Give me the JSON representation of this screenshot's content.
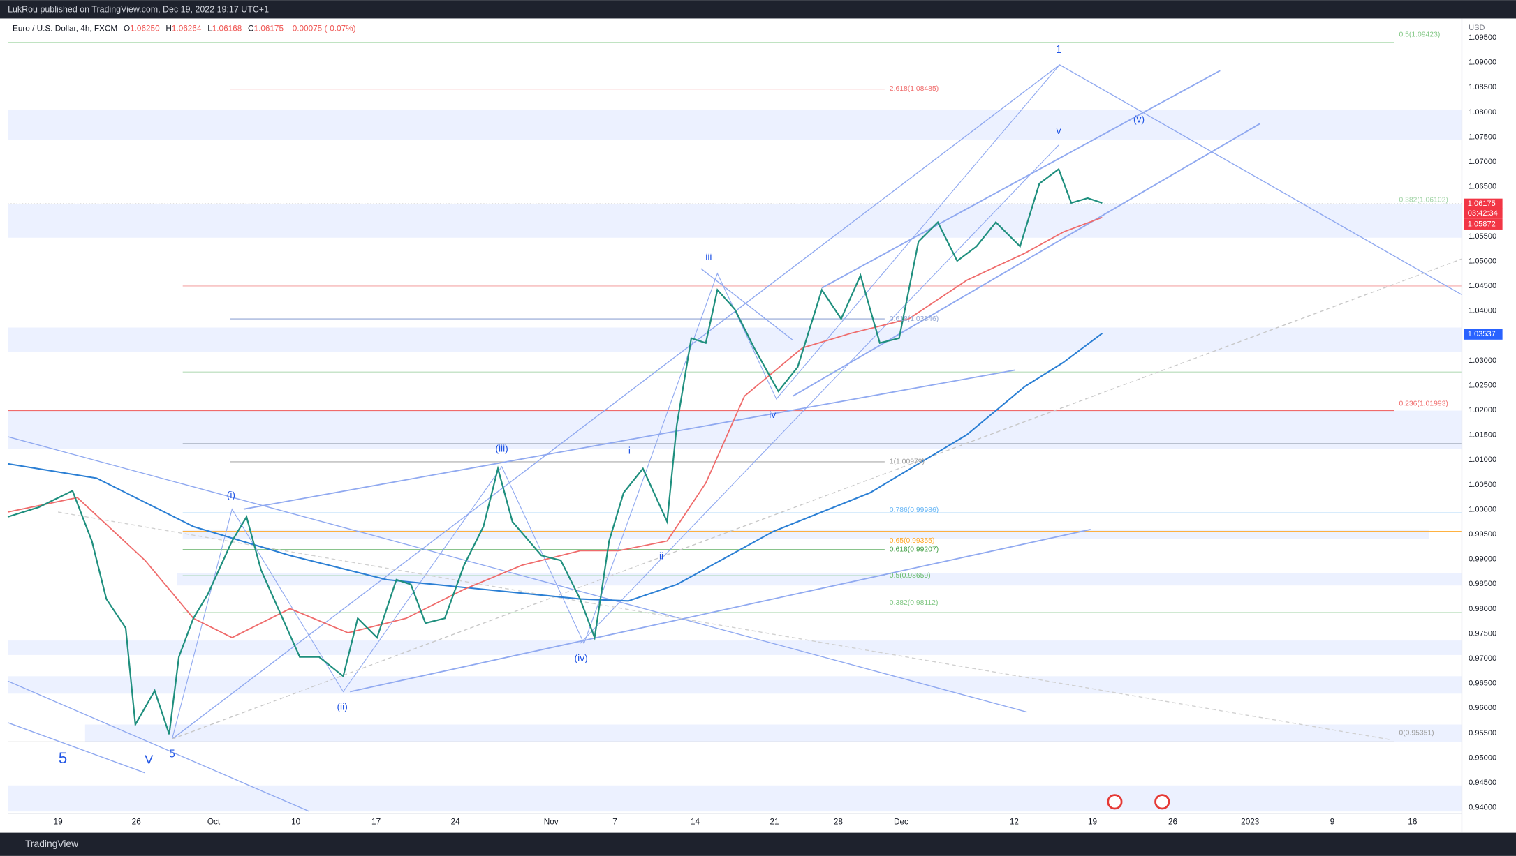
{
  "header": {
    "publisher": "LukRou published on TradingView.com, Dec 19, 2022 19:17 UTC+1"
  },
  "symbol": {
    "name": "Euro / U.S. Dollar, 4h, FXCM",
    "open_label": "O",
    "open": "1.06250",
    "high_label": "H",
    "high": "1.06264",
    "low_label": "L",
    "low": "1.06168",
    "close_label": "C",
    "close": "1.06175",
    "change": "-0.00075 (-0.07%)"
  },
  "price_axis": {
    "currency": "USD",
    "labels": [
      "1.09500",
      "1.09000",
      "1.08500",
      "1.08000",
      "1.07500",
      "1.07000",
      "1.06500",
      "1.06000",
      "1.05500",
      "1.05000",
      "1.04500",
      "1.04000",
      "1.03500",
      "1.03000",
      "1.02500",
      "1.02000",
      "1.01500",
      "1.01000",
      "1.00500",
      "1.00000",
      "0.99500",
      "0.99000",
      "0.98500",
      "0.98000",
      "0.97500",
      "0.97000",
      "0.96500",
      "0.96000",
      "0.95500",
      "0.95000",
      "0.94500",
      "0.94000"
    ]
  },
  "price_tags": [
    {
      "text": "1.06175",
      "kind": "last"
    },
    {
      "text": "03:42:34",
      "kind": "countdown"
    },
    {
      "text": "1.05872",
      "kind": "last"
    },
    {
      "text": "1.03537",
      "kind": "ma"
    }
  ],
  "time_axis": {
    "labels": [
      "19",
      "26",
      "Oct",
      "10",
      "17",
      "24",
      "Nov",
      "7",
      "14",
      "21",
      "28",
      "Dec",
      "12",
      "19",
      "26",
      "2023",
      "9",
      "16"
    ]
  },
  "fib_labels": [
    {
      "text": "0.5(1.09423)",
      "color": "#81c784"
    },
    {
      "text": "2.618(1.08485)",
      "color": "#f06b6b"
    },
    {
      "text": "0.382(1.06102)",
      "color": "#9fd3a4"
    },
    {
      "text": "0.618(1.03846)",
      "color": "#90a4d4"
    },
    {
      "text": "0.236(1.01993)",
      "color": "#f06b6b"
    },
    {
      "text": "1(1.00979)",
      "color": "#9e9e9e"
    },
    {
      "text": "0.786(0.99986)",
      "color": "#64b5f6"
    },
    {
      "text": "0.65(0.99355)",
      "color": "#ffa726"
    },
    {
      "text": "0.618(0.99207)",
      "color": "#43a047"
    },
    {
      "text": "0.5(0.98659)",
      "color": "#66bb6a"
    },
    {
      "text": "0.382(0.98112)",
      "color": "#81c784"
    },
    {
      "text": "0(0.95351)",
      "color": "#9e9e9e"
    }
  ],
  "wave_labels": [
    "1",
    "(v)",
    "v",
    "iii",
    "iv",
    "i",
    "ii",
    "(iii)",
    "(i)",
    "(ii)",
    "(iv)",
    "5",
    "V",
    "5"
  ],
  "footer": {
    "brand": "TradingView"
  }
}
